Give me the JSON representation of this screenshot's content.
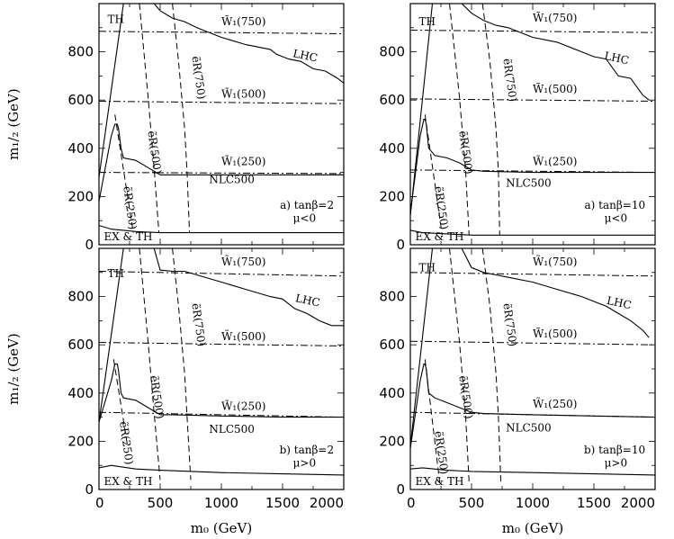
{
  "chart_data": [
    {
      "type": "line",
      "panel_label": "a) tanβ=2",
      "panel_sub": "μ<0",
      "xlim": [
        0,
        2000
      ],
      "ylim": [
        0,
        1000
      ],
      "series": [
        {
          "name": "TH",
          "style": "solid",
          "x": [
            0,
            200
          ],
          "y": [
            280,
            1000
          ]
        },
        {
          "name": "LHC",
          "style": "solid",
          "x": [
            450,
            500,
            600,
            700,
            800,
            1000,
            1200,
            1400,
            1450,
            1550,
            1650,
            1750,
            1850,
            1950,
            2000
          ],
          "y": [
            1000,
            970,
            940,
            925,
            900,
            860,
            830,
            810,
            790,
            770,
            760,
            730,
            720,
            690,
            670
          ]
        },
        {
          "name": "NLC500",
          "style": "solid",
          "x": [
            0,
            100,
            130,
            150,
            160,
            180,
            200,
            300,
            400,
            500,
            600,
            1000,
            1500,
            2000
          ],
          "y": [
            180,
            450,
            500,
            500,
            480,
            400,
            360,
            350,
            320,
            290,
            290,
            290,
            290,
            290
          ]
        },
        {
          "name": "EX & TH",
          "style": "solid",
          "x": [
            0,
            100,
            300,
            500,
            1000,
            1500,
            2000
          ],
          "y": [
            80,
            65,
            55,
            50,
            50,
            50,
            50
          ]
        },
        {
          "name": "W1(250)",
          "style": "dashdot",
          "x": [
            0,
            2000
          ],
          "y": [
            300,
            295
          ]
        },
        {
          "name": "W1(500)",
          "style": "dashdot",
          "x": [
            0,
            2000
          ],
          "y": [
            595,
            585
          ]
        },
        {
          "name": "W1(750)",
          "style": "dashdot",
          "x": [
            0,
            2000
          ],
          "y": [
            885,
            875
          ]
        },
        {
          "name": "eR(250)",
          "style": "dashed",
          "x": [
            130,
            280
          ],
          "y": [
            540,
            50
          ]
        },
        {
          "name": "eR(500)",
          "style": "dashed",
          "x": [
            330,
            400,
            450,
            490
          ],
          "y": [
            1000,
            620,
            320,
            50
          ]
        },
        {
          "name": "eR(750)",
          "style": "dashed",
          "x": [
            600,
            650,
            700,
            720,
            740
          ],
          "y": [
            1000,
            760,
            480,
            300,
            50
          ]
        }
      ],
      "annotations": [
        {
          "text": "TH",
          "x": 70,
          "y": 920
        },
        {
          "text": "LHC",
          "x": 1580,
          "y": 780,
          "rotate": 12
        },
        {
          "text": "W̃₁(750)",
          "x": 1000,
          "y": 910
        },
        {
          "text": "W̃₁(500)",
          "x": 1000,
          "y": 610
        },
        {
          "text": "W̃₁(250)",
          "x": 1000,
          "y": 330
        },
        {
          "text": "NLC500",
          "x": 900,
          "y": 255
        },
        {
          "text": "ẽR(750)",
          "x": 760,
          "y": 780,
          "rotate": 82
        },
        {
          "text": "ẽR(500)",
          "x": 400,
          "y": 470,
          "rotate": 82
        },
        {
          "text": "ẽR(250)",
          "x": 200,
          "y": 240,
          "rotate": 82
        },
        {
          "text": "EX & TH",
          "x": 40,
          "y": 18
        }
      ]
    },
    {
      "type": "line",
      "panel_label": "a) tanβ=10",
      "panel_sub": "μ<0",
      "xlim": [
        0,
        2000
      ],
      "ylim": [
        0,
        1000
      ],
      "series": [
        {
          "name": "TH",
          "style": "solid",
          "x": [
            0,
            180
          ],
          "y": [
            120,
            1000
          ]
        },
        {
          "name": "LHC",
          "style": "solid",
          "x": [
            420,
            500,
            600,
            700,
            800,
            1000,
            1200,
            1400,
            1500,
            1600,
            1700,
            1800,
            1900,
            1950
          ],
          "y": [
            1000,
            960,
            930,
            910,
            900,
            860,
            840,
            800,
            780,
            770,
            700,
            690,
            620,
            600
          ]
        },
        {
          "name": "NLC500",
          "style": "solid",
          "x": [
            0,
            80,
            110,
            120,
            130,
            150,
            200,
            300,
            400,
            500,
            600,
            1000,
            1500,
            2000
          ],
          "y": [
            130,
            450,
            520,
            520,
            500,
            400,
            370,
            360,
            340,
            310,
            305,
            300,
            300,
            300
          ]
        },
        {
          "name": "EX & TH",
          "style": "solid",
          "x": [
            0,
            100,
            300,
            500,
            1000,
            1500,
            2000
          ],
          "y": [
            60,
            50,
            45,
            40,
            40,
            40,
            40
          ]
        },
        {
          "name": "W1(250)",
          "style": "dashdot",
          "x": [
            0,
            2000
          ],
          "y": [
            310,
            300
          ]
        },
        {
          "name": "W1(500)",
          "style": "dashdot",
          "x": [
            0,
            2000
          ],
          "y": [
            605,
            595
          ]
        },
        {
          "name": "W1(750)",
          "style": "dashdot",
          "x": [
            0,
            2000
          ],
          "y": [
            890,
            880
          ]
        },
        {
          "name": "eR(250)",
          "style": "dashed",
          "x": [
            120,
            260
          ],
          "y": [
            540,
            40
          ]
        },
        {
          "name": "eR(500)",
          "style": "dashed",
          "x": [
            320,
            400,
            450,
            480
          ],
          "y": [
            1000,
            620,
            320,
            40
          ]
        },
        {
          "name": "eR(750)",
          "style": "dashed",
          "x": [
            590,
            650,
            700,
            720,
            730
          ],
          "y": [
            1000,
            760,
            480,
            300,
            40
          ]
        }
      ],
      "annotations": [
        {
          "text": "TH",
          "x": 70,
          "y": 910
        },
        {
          "text": "LHC",
          "x": 1580,
          "y": 770,
          "rotate": 12
        },
        {
          "text": "W̃₁(750)",
          "x": 1000,
          "y": 925
        },
        {
          "text": "W̃₁(500)",
          "x": 1000,
          "y": 630
        },
        {
          "text": "W̃₁(250)",
          "x": 1000,
          "y": 330
        },
        {
          "text": "NLC500",
          "x": 780,
          "y": 240
        },
        {
          "text": "ẽR(750)",
          "x": 760,
          "y": 770,
          "rotate": 82
        },
        {
          "text": "ẽR(500)",
          "x": 400,
          "y": 470,
          "rotate": 82
        },
        {
          "text": "ẽR(250)",
          "x": 200,
          "y": 240,
          "rotate": 82
        },
        {
          "text": "EX & TH",
          "x": 40,
          "y": 18
        }
      ]
    },
    {
      "type": "line",
      "panel_label": "b) tanβ=2",
      "panel_sub": "μ>0",
      "xlim": [
        0,
        2000
      ],
      "ylim": [
        0,
        1000
      ],
      "series": [
        {
          "name": "TH",
          "style": "solid",
          "x": [
            0,
            200
          ],
          "y": [
            280,
            1000
          ]
        },
        {
          "name": "LHC",
          "style": "solid",
          "x": [
            450,
            500,
            600,
            700,
            800,
            1000,
            1200,
            1400,
            1500,
            1600,
            1700,
            1800,
            1900,
            2000
          ],
          "y": [
            1000,
            910,
            905,
            905,
            890,
            860,
            830,
            800,
            790,
            750,
            730,
            700,
            680,
            680
          ]
        },
        {
          "name": "NLC500",
          "style": "solid",
          "x": [
            0,
            100,
            130,
            150,
            160,
            180,
            200,
            300,
            400,
            500,
            600,
            1000,
            1500,
            2000
          ],
          "y": [
            280,
            450,
            520,
            520,
            490,
            400,
            380,
            370,
            340,
            310,
            310,
            305,
            300,
            300
          ]
        },
        {
          "name": "EX & TH",
          "style": "solid",
          "x": [
            0,
            100,
            300,
            500,
            1000,
            1500,
            2000
          ],
          "y": [
            90,
            100,
            85,
            80,
            70,
            65,
            60
          ]
        },
        {
          "name": "W1(250)",
          "style": "dashdot",
          "x": [
            0,
            2000
          ],
          "y": [
            320,
            300
          ]
        },
        {
          "name": "W1(500)",
          "style": "dashdot",
          "x": [
            0,
            2000
          ],
          "y": [
            610,
            595
          ]
        },
        {
          "name": "W1(750)",
          "style": "dashdot",
          "x": [
            0,
            2000
          ],
          "y": [
            905,
            885
          ]
        },
        {
          "name": "eR(250)",
          "style": "dashed",
          "x": [
            120,
            230
          ],
          "y": [
            540,
            190
          ]
        },
        {
          "name": "eR(500)",
          "style": "dashed",
          "x": [
            330,
            400,
            450,
            500
          ],
          "y": [
            1000,
            620,
            320,
            40
          ]
        },
        {
          "name": "eR(750)",
          "style": "dashed",
          "x": [
            600,
            650,
            700,
            720,
            750
          ],
          "y": [
            1000,
            760,
            480,
            300,
            40
          ]
        }
      ],
      "annotations": [
        {
          "text": "TH",
          "x": 70,
          "y": 880
        },
        {
          "text": "LHC",
          "x": 1600,
          "y": 780,
          "rotate": 12
        },
        {
          "text": "W̃₁(750)",
          "x": 1000,
          "y": 930
        },
        {
          "text": "W̃₁(500)",
          "x": 1000,
          "y": 620
        },
        {
          "text": "W̃₁(250)",
          "x": 1000,
          "y": 330
        },
        {
          "text": "NLC500",
          "x": 900,
          "y": 235
        },
        {
          "text": "ẽR(750)",
          "x": 760,
          "y": 770,
          "rotate": 82
        },
        {
          "text": "ẽR(500)",
          "x": 420,
          "y": 470,
          "rotate": 82
        },
        {
          "text": "ẽR(250)",
          "x": 170,
          "y": 280,
          "rotate": 82
        },
        {
          "text": "EX & TH",
          "x": 40,
          "y": 18
        }
      ]
    },
    {
      "type": "line",
      "panel_label": "b) tanβ=10",
      "panel_sub": "μ>0",
      "xlim": [
        0,
        2000
      ],
      "ylim": [
        0,
        1000
      ],
      "series": [
        {
          "name": "TH",
          "style": "solid",
          "x": [
            0,
            180
          ],
          "y": [
            180,
            1000
          ]
        },
        {
          "name": "LHC",
          "style": "solid",
          "x": [
            420,
            500,
            600,
            700,
            800,
            1000,
            1200,
            1400,
            1500,
            1600,
            1700,
            1800,
            1900,
            1950
          ],
          "y": [
            1000,
            920,
            900,
            890,
            880,
            860,
            830,
            800,
            780,
            760,
            730,
            700,
            660,
            630
          ]
        },
        {
          "name": "NLC500",
          "style": "solid",
          "x": [
            0,
            80,
            110,
            120,
            130,
            150,
            200,
            300,
            400,
            500,
            600,
            1000,
            1500,
            2000
          ],
          "y": [
            170,
            450,
            520,
            520,
            500,
            400,
            380,
            360,
            340,
            320,
            315,
            310,
            305,
            300
          ]
        },
        {
          "name": "EX & TH",
          "style": "solid",
          "x": [
            0,
            100,
            300,
            500,
            1000,
            1500,
            2000
          ],
          "y": [
            85,
            90,
            80,
            75,
            70,
            65,
            60
          ]
        },
        {
          "name": "W1(250)",
          "style": "dashdot",
          "x": [
            0,
            2000
          ],
          "y": [
            320,
            300
          ]
        },
        {
          "name": "W1(500)",
          "style": "dashdot",
          "x": [
            0,
            2000
          ],
          "y": [
            615,
            600
          ]
        },
        {
          "name": "W1(750)",
          "style": "dashdot",
          "x": [
            0,
            2000
          ],
          "y": [
            900,
            885
          ]
        },
        {
          "name": "eR(250)",
          "style": "dashed",
          "x": [
            120,
            240
          ],
          "y": [
            540,
            30
          ]
        },
        {
          "name": "eR(500)",
          "style": "dashed",
          "x": [
            320,
            400,
            450,
            480
          ],
          "y": [
            1000,
            620,
            320,
            30
          ]
        },
        {
          "name": "eR(750)",
          "style": "dashed",
          "x": [
            590,
            650,
            700,
            720,
            740
          ],
          "y": [
            1000,
            760,
            480,
            300,
            30
          ]
        }
      ],
      "annotations": [
        {
          "text": "TH",
          "x": 70,
          "y": 905
        },
        {
          "text": "LHC",
          "x": 1600,
          "y": 770,
          "rotate": 12
        },
        {
          "text": "W̃₁(750)",
          "x": 1000,
          "y": 930
        },
        {
          "text": "W̃₁(500)",
          "x": 1000,
          "y": 630
        },
        {
          "text": "W̃₁(250)",
          "x": 1000,
          "y": 340
        },
        {
          "text": "NLC500",
          "x": 780,
          "y": 240
        },
        {
          "text": "ẽR(750)",
          "x": 760,
          "y": 770,
          "rotate": 82
        },
        {
          "text": "ẽR(500)",
          "x": 400,
          "y": 470,
          "rotate": 82
        },
        {
          "text": "ẽR(250)",
          "x": 200,
          "y": 240,
          "rotate": 82
        },
        {
          "text": "EX & TH",
          "x": 40,
          "y": 18
        }
      ]
    }
  ],
  "axes": {
    "xlabel": "m₀ (GeV)",
    "ylabel": "m₁/₂ (GeV)",
    "xticks": [
      "0",
      "500",
      "1000",
      "1500",
      "2000"
    ],
    "yticks": [
      "0",
      "200",
      "400",
      "600",
      "800"
    ],
    "ytick_values": [
      0,
      200,
      400,
      600,
      800
    ],
    "xtick_values": [
      0,
      500,
      1000,
      1500,
      2000
    ]
  }
}
